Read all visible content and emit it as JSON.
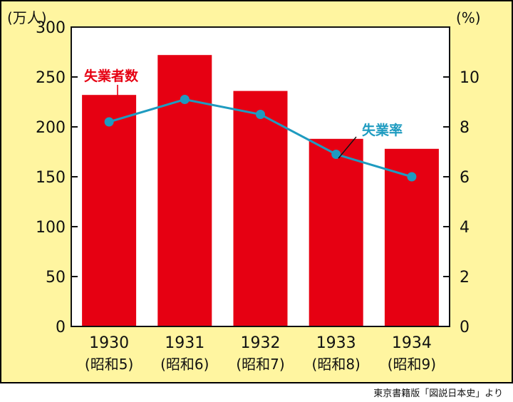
{
  "chart_data": {
    "type": "bar+line",
    "categories": [
      "1930",
      "1931",
      "1932",
      "1933",
      "1934"
    ],
    "category_sublabels": [
      "(昭和5)",
      "(昭和6)",
      "(昭和7)",
      "(昭和8)",
      "(昭和9)"
    ],
    "series": [
      {
        "name": "失業者数",
        "type": "bar",
        "axis": "left",
        "values": [
          232,
          272,
          236,
          188,
          178
        ]
      },
      {
        "name": "失業率",
        "type": "line",
        "axis": "right",
        "values": [
          8.2,
          9.1,
          8.5,
          6.9,
          6.0
        ]
      }
    ],
    "left_axis": {
      "unit": "(万人)",
      "ylim": [
        0,
        300
      ],
      "ticks": [
        0,
        50,
        100,
        150,
        200,
        250,
        300
      ]
    },
    "right_axis": {
      "unit": "(%)",
      "ylim": [
        0,
        12
      ],
      "ticks": [
        0,
        2,
        4,
        6,
        8,
        10
      ]
    },
    "grid": false,
    "colors": {
      "background": "#FFF5A0",
      "plot": "#FFFFFF",
      "bar": "#E60012",
      "line": "#1E9BC0",
      "bar_label": "#E60012",
      "line_label": "#1E9BC0"
    }
  },
  "source": "東京書籍版「図説日本史」より"
}
